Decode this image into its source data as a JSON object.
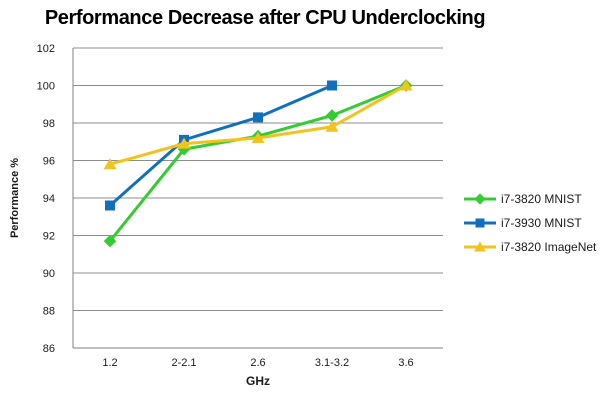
{
  "chart_data": {
    "type": "line",
    "title": "Performance Decrease after CPU Underclocking",
    "xlabel": "GHz",
    "ylabel": "Performance %",
    "categories": [
      "1.2",
      "2-2.1",
      "2.6",
      "3.1-3.2",
      "3.6"
    ],
    "ylim": [
      86,
      102
    ],
    "ytick_step": 2,
    "grid": true,
    "legend_position": "right",
    "series": [
      {
        "name": "i7-3820 MNIST",
        "color": "#33CC33",
        "marker": "diamond",
        "values": [
          91.7,
          96.6,
          97.3,
          98.4,
          100
        ]
      },
      {
        "name": "i7-3930 MNIST",
        "color": "#1070BE",
        "marker": "square",
        "values": [
          93.6,
          97.1,
          98.3,
          100,
          null
        ]
      },
      {
        "name": "i7-3820 ImageNet",
        "color": "#F2C31E",
        "marker": "triangle",
        "values": [
          95.8,
          96.9,
          97.2,
          97.8,
          100
        ]
      }
    ],
    "colors": {
      "gridline": "#8C8C8C",
      "axis": "#808080",
      "text": "#1A1A1A",
      "background": "#FFFFFF"
    }
  }
}
